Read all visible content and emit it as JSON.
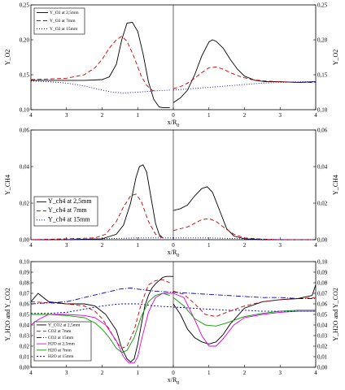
{
  "chart_data": [
    {
      "type": "line",
      "panel": "top",
      "xlabel": "x/R0",
      "ylabel_left": "Y_O2",
      "ylabel_right": "Y_O2",
      "ylim": [
        0.1,
        0.25
      ],
      "y_ticks": [
        "0,10",
        "0,15",
        "0,20",
        "0,25"
      ],
      "x_ticks": [
        "4",
        "3",
        "2",
        "1",
        "0",
        "1",
        "2",
        "3",
        "4"
      ],
      "legend_position": "top-left",
      "series": [
        {
          "name": "Y_O2 at 2,5mm",
          "color": "#000000",
          "dash": "solid",
          "left_x": [
            4.0,
            3.5,
            3.0,
            2.5,
            2.0,
            1.8,
            1.6,
            1.45,
            1.3,
            1.15,
            1.0,
            0.85,
            0.7,
            0.55,
            0.4,
            0.3,
            0.2,
            0.1
          ],
          "left_y": [
            0.142,
            0.142,
            0.142,
            0.142,
            0.143,
            0.147,
            0.165,
            0.2,
            0.224,
            0.225,
            0.212,
            0.18,
            0.14,
            0.115,
            0.104,
            0.103,
            0.103,
            0.103
          ],
          "right_x": [
            0.0,
            0.2,
            0.4,
            0.6,
            0.8,
            1.0,
            1.1,
            1.2,
            1.4,
            1.6,
            1.8,
            2.0,
            2.3,
            2.6,
            3.0,
            3.5,
            4.0
          ],
          "right_y": [
            0.11,
            0.117,
            0.128,
            0.15,
            0.177,
            0.197,
            0.2,
            0.198,
            0.188,
            0.172,
            0.158,
            0.148,
            0.142,
            0.14,
            0.14,
            0.139,
            0.14
          ]
        },
        {
          "name": "Y_O2 at 7mm",
          "color": "#cc0000",
          "dash": "5,3",
          "left_x": [
            4.0,
            3.5,
            3.0,
            2.5,
            2.2,
            2.0,
            1.8,
            1.6,
            1.45,
            1.3,
            1.1,
            0.9,
            0.75,
            0.6,
            0.5
          ],
          "left_y": [
            0.143,
            0.144,
            0.145,
            0.15,
            0.16,
            0.172,
            0.188,
            0.2,
            0.205,
            0.198,
            0.175,
            0.148,
            0.135,
            0.128,
            0.126
          ],
          "right_x": [
            0.0,
            0.2,
            0.4,
            0.6,
            0.8,
            1.0,
            1.2,
            1.4,
            1.6,
            1.9,
            2.2,
            2.6,
            3.0,
            3.5,
            4.0
          ],
          "right_y": [
            0.13,
            0.133,
            0.138,
            0.145,
            0.153,
            0.16,
            0.161,
            0.158,
            0.153,
            0.147,
            0.143,
            0.141,
            0.14,
            0.139,
            0.139
          ]
        },
        {
          "name": "Y_O2 at 15mm",
          "color": "#0000cc",
          "dash": "1,2",
          "left_x": [
            4.0,
            3.5,
            3.0,
            2.5,
            2.0,
            1.7,
            1.4,
            1.0,
            0.5,
            0.1
          ],
          "left_y": [
            0.141,
            0.14,
            0.138,
            0.134,
            0.128,
            0.125,
            0.124,
            0.125,
            0.127,
            0.128
          ],
          "right_x": [
            0.0,
            0.5,
            1.0,
            1.5,
            2.0,
            2.5,
            3.0,
            3.5,
            4.0
          ],
          "right_y": [
            0.128,
            0.13,
            0.132,
            0.134,
            0.136,
            0.138,
            0.139,
            0.14,
            0.14
          ]
        }
      ]
    },
    {
      "type": "line",
      "panel": "middle",
      "xlabel": "x/R0",
      "ylabel_left": "Y_CH4",
      "ylabel_right": "Y_CH4",
      "ylim": [
        0.0,
        0.06
      ],
      "y_ticks": [
        "0,00",
        "0,02",
        "0,04",
        "0,06"
      ],
      "x_ticks": [
        "4",
        "3",
        "2",
        "1",
        "0",
        "1",
        "2",
        "3",
        "4"
      ],
      "legend_position": "bottom-left",
      "series": [
        {
          "name": "Y_ch4 at 2,5mm",
          "color": "#000000",
          "dash": "solid",
          "left_x": [
            4.0,
            3.0,
            2.0,
            1.6,
            1.4,
            1.2,
            1.05,
            0.95,
            0.85,
            0.75,
            0.6,
            0.5,
            0.4,
            0.3
          ],
          "left_y": [
            0.0,
            0.0,
            0.0005,
            0.003,
            0.008,
            0.02,
            0.034,
            0.04,
            0.041,
            0.037,
            0.02,
            0.009,
            0.003,
            0.001
          ],
          "right_x": [
            0.0,
            0.2,
            0.4,
            0.6,
            0.8,
            0.95,
            1.1,
            1.3,
            1.5,
            1.7,
            2.0,
            2.5,
            3.0,
            4.0
          ],
          "right_y": [
            0.016,
            0.017,
            0.019,
            0.024,
            0.028,
            0.029,
            0.026,
            0.016,
            0.006,
            0.002,
            0.0005,
            0.0,
            0.0,
            0.0
          ]
        },
        {
          "name": "Y_ch4 at 7mm",
          "color": "#cc0000",
          "dash": "5,3",
          "left_x": [
            4.0,
            3.0,
            2.2,
            1.9,
            1.6,
            1.4,
            1.2,
            1.05,
            0.9,
            0.7,
            0.5,
            0.3
          ],
          "left_y": [
            0.0,
            0.0005,
            0.001,
            0.003,
            0.01,
            0.018,
            0.024,
            0.025,
            0.021,
            0.01,
            0.003,
            0.001
          ],
          "right_x": [
            0.0,
            0.2,
            0.4,
            0.6,
            0.8,
            1.0,
            1.2,
            1.4,
            1.7,
            2.0,
            2.5,
            3.0,
            4.0
          ],
          "right_y": [
            0.005,
            0.006,
            0.007,
            0.009,
            0.011,
            0.0115,
            0.01,
            0.007,
            0.003,
            0.001,
            0.0003,
            0.0,
            0.0
          ]
        },
        {
          "name": "Y_ch4 at 15mm",
          "color": "#0000cc",
          "dash": "1,2",
          "left_x": [
            4.0,
            3.0,
            2.0,
            1.0,
            0.5,
            0.0
          ],
          "left_y": [
            0.0,
            0.0,
            0.0005,
            0.001,
            0.001,
            0.001
          ],
          "right_x": [
            0.0,
            1.0,
            2.0,
            3.0,
            4.0
          ],
          "right_y": [
            0.001,
            0.001,
            0.0005,
            0.0,
            0.0
          ]
        }
      ]
    },
    {
      "type": "line",
      "panel": "bottom",
      "xlabel": "x/R0",
      "ylabel_left": "Y_H2O and Y_CO2",
      "ylabel_right": "Y_H2O and Y_CO2",
      "ylim": [
        0.0,
        0.1
      ],
      "y_ticks": [
        "0,00",
        "0,01",
        "0,02",
        "0,03",
        "0,04",
        "0,05",
        "0,06",
        "0,07",
        "0,08",
        "0,09",
        "0,10"
      ],
      "x_ticks": [
        "4",
        "3",
        "2",
        "1",
        "0",
        "1",
        "2",
        "3",
        "4"
      ],
      "legend_position": "bottom-left",
      "series": [
        {
          "name": "Y_CO2 at 2,5mm",
          "color": "#000000",
          "dash": "solid",
          "left_x": [
            4.0,
            3.8,
            3.5,
            3.0,
            2.5,
            2.2,
            1.9,
            1.6,
            1.45,
            1.3,
            1.2,
            1.1,
            1.0,
            0.9,
            0.8,
            0.7,
            0.6,
            0.5,
            0.4,
            0.3,
            0.2,
            0.1,
            0.0
          ],
          "left_y": [
            0.062,
            0.07,
            0.062,
            0.06,
            0.06,
            0.058,
            0.05,
            0.035,
            0.018,
            0.008,
            0.005,
            0.008,
            0.022,
            0.04,
            0.058,
            0.068,
            0.075,
            0.079,
            0.082,
            0.085,
            0.086,
            0.086,
            0.086
          ],
          "right_x": [
            0.0,
            0.2,
            0.4,
            0.6,
            0.8,
            1.0,
            1.2,
            1.4,
            1.6,
            2.0,
            2.5,
            3.0,
            3.5,
            3.9,
            4.0
          ],
          "right_y": [
            0.06,
            0.05,
            0.036,
            0.028,
            0.024,
            0.022,
            0.024,
            0.031,
            0.041,
            0.056,
            0.062,
            0.064,
            0.065,
            0.068,
            0.078
          ]
        },
        {
          "name": "CO2 at 7mm",
          "color": "#cc0000",
          "dash": "5,3",
          "left_x": [
            4.0,
            3.5,
            3.0,
            2.5,
            2.2,
            2.0,
            1.8,
            1.6,
            1.45,
            1.3,
            1.1,
            0.9,
            0.7,
            0.5,
            0.3,
            0.1
          ],
          "left_y": [
            0.062,
            0.061,
            0.06,
            0.058,
            0.053,
            0.046,
            0.036,
            0.024,
            0.018,
            0.02,
            0.035,
            0.06,
            0.078,
            0.082,
            0.083,
            0.08
          ],
          "right_x": [
            0.0,
            0.3,
            0.6,
            0.9,
            1.2,
            1.5,
            2.0,
            2.5,
            3.0,
            3.5,
            4.0
          ],
          "right_y": [
            0.072,
            0.069,
            0.06,
            0.05,
            0.048,
            0.052,
            0.058,
            0.062,
            0.064,
            0.065,
            0.066
          ]
        },
        {
          "name": "CO2 at 15mm",
          "color": "#0000cc",
          "dash": "6,2,1,2",
          "left_x": [
            4.0,
            3.5,
            3.0,
            2.5,
            2.0,
            1.5,
            1.2,
            1.0,
            0.5,
            0.0
          ],
          "left_y": [
            0.06,
            0.061,
            0.062,
            0.066,
            0.07,
            0.074,
            0.075,
            0.074,
            0.072,
            0.071
          ],
          "right_x": [
            0.0,
            0.5,
            1.0,
            1.5,
            2.0,
            2.5,
            3.0,
            3.5,
            4.0
          ],
          "right_y": [
            0.071,
            0.07,
            0.069,
            0.068,
            0.067,
            0.066,
            0.066,
            0.065,
            0.065
          ]
        },
        {
          "name": "H2O at 2,5mm",
          "color": "#dd00dd",
          "dash": "solid",
          "left_x": [
            4.0,
            3.8,
            3.5,
            3.0,
            2.5,
            2.2,
            1.9,
            1.6,
            1.4,
            1.25,
            1.1,
            1.0,
            0.9,
            0.7,
            0.5,
            0.3,
            0.1,
            0.0
          ],
          "left_y": [
            0.04,
            0.045,
            0.05,
            0.05,
            0.049,
            0.047,
            0.04,
            0.025,
            0.01,
            0.004,
            0.004,
            0.01,
            0.025,
            0.052,
            0.066,
            0.07,
            0.07,
            0.07
          ],
          "right_x": [
            0.0,
            0.3,
            0.6,
            0.8,
            1.0,
            1.2,
            1.4,
            1.7,
            2.0,
            2.5,
            3.0,
            3.5,
            4.0
          ],
          "right_y": [
            0.07,
            0.066,
            0.045,
            0.03,
            0.02,
            0.02,
            0.027,
            0.04,
            0.047,
            0.05,
            0.052,
            0.053,
            0.053
          ]
        },
        {
          "name": "H2O at 7mm",
          "color": "#009900",
          "dash": "solid",
          "left_x": [
            4.0,
            3.5,
            3.0,
            2.5,
            2.2,
            2.0,
            1.8,
            1.6,
            1.45,
            1.3,
            1.1,
            0.9,
            0.7,
            0.5,
            0.3,
            0.1
          ],
          "left_y": [
            0.05,
            0.05,
            0.049,
            0.047,
            0.042,
            0.036,
            0.028,
            0.018,
            0.014,
            0.016,
            0.028,
            0.048,
            0.062,
            0.068,
            0.07,
            0.068
          ],
          "right_x": [
            0.0,
            0.3,
            0.6,
            0.9,
            1.2,
            1.5,
            2.0,
            2.5,
            3.0,
            3.5,
            4.0
          ],
          "right_y": [
            0.066,
            0.058,
            0.046,
            0.04,
            0.039,
            0.042,
            0.048,
            0.051,
            0.053,
            0.054,
            0.054
          ]
        },
        {
          "name": "H2O at 15mm",
          "color": "#0000cc",
          "dash": "2,2",
          "left_x": [
            4.0,
            3.5,
            3.0,
            2.5,
            2.0,
            1.5,
            1.0,
            0.5,
            0.0
          ],
          "left_y": [
            0.051,
            0.051,
            0.052,
            0.055,
            0.058,
            0.06,
            0.06,
            0.058,
            0.057
          ],
          "right_x": [
            0.0,
            0.5,
            1.0,
            1.5,
            2.0,
            2.5,
            3.0,
            3.5,
            4.0
          ],
          "right_y": [
            0.057,
            0.056,
            0.055,
            0.054,
            0.054,
            0.053,
            0.053,
            0.053,
            0.053
          ]
        }
      ]
    }
  ]
}
